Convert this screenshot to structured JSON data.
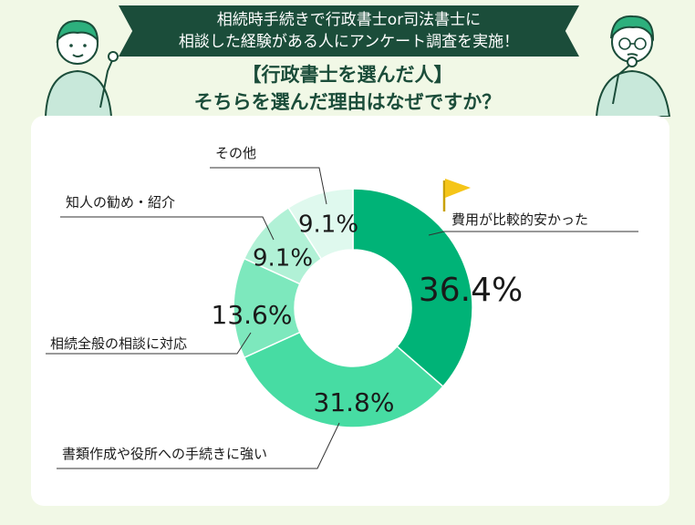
{
  "header": {
    "banner_line1": "相続時手続きで行政書士or司法書士に",
    "banner_line2": "相談した経験がある人にアンケート調査を実施！",
    "title_line1": "【行政書士を選んだ人】",
    "title_line2": "そちらを選んだ理由はなぜですか？"
  },
  "colors": {
    "banner": "#1b4d3a",
    "background": "#f1f8e6",
    "flag": "#f5c518"
  },
  "chart_data": {
    "type": "pie",
    "donut": true,
    "title": "",
    "categories": [
      "費用が比較的安かった",
      "書類作成や役所への手続きに強い",
      "相続全般の相談に対応",
      "知人の勧め・紹介",
      "その他"
    ],
    "values": [
      36.4,
      31.8,
      13.6,
      9.1,
      9.1
    ],
    "value_labels": [
      "36.4%",
      "31.8%",
      "13.6%",
      "9.1%",
      "9.1%"
    ],
    "colors": [
      "#00b377",
      "#47dca3",
      "#7de8bd",
      "#b1f1d6",
      "#dff9ee"
    ]
  }
}
